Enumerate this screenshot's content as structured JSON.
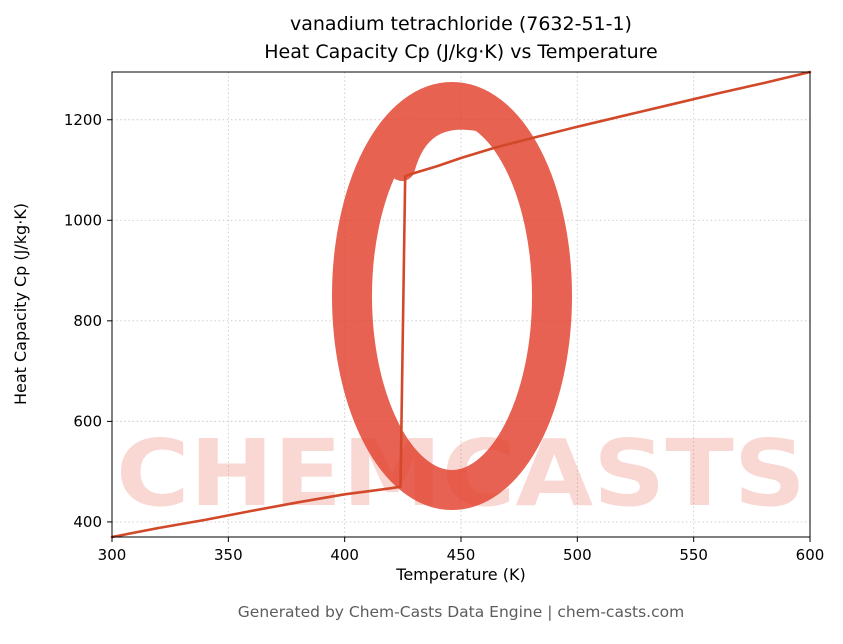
{
  "title_line1": "vanadium tetrachloride (7632-51-1)",
  "title_line2": "Heat Capacity Cp (J/kg·K) vs Temperature",
  "footer_text": "Generated by Chem-Casts Data Engine | chem-casts.com",
  "watermark": {
    "text": "CHEMCASTS",
    "text_color": "#e74c3c",
    "logo_color": "#e2402c"
  },
  "chart_data": {
    "type": "line",
    "title": "vanadium tetrachloride (7632-51-1) — Heat Capacity Cp (J/kg·K) vs Temperature",
    "xlabel": "Temperature (K)",
    "ylabel": "Heat Capacity Cp (J/kg·K)",
    "xlim": [
      300,
      600
    ],
    "ylim": [
      370,
      1295
    ],
    "xticks": [
      300,
      350,
      400,
      450,
      500,
      550,
      600
    ],
    "yticks": [
      400,
      600,
      800,
      1000,
      1200
    ],
    "grid": true,
    "legend": "none",
    "line_color": "#d2492a",
    "series": [
      {
        "x": [
          300,
          320,
          340,
          360,
          380,
          400,
          410,
          420,
          424,
          426,
          430,
          440,
          450,
          465,
          480,
          500,
          520,
          540,
          560,
          580,
          600
        ],
        "y": [
          370,
          388,
          404,
          422,
          439,
          455,
          461,
          467,
          470,
          1088,
          1094,
          1108,
          1124,
          1145,
          1163,
          1186,
          1208,
          1230,
          1252,
          1273,
          1295
        ]
      }
    ]
  }
}
